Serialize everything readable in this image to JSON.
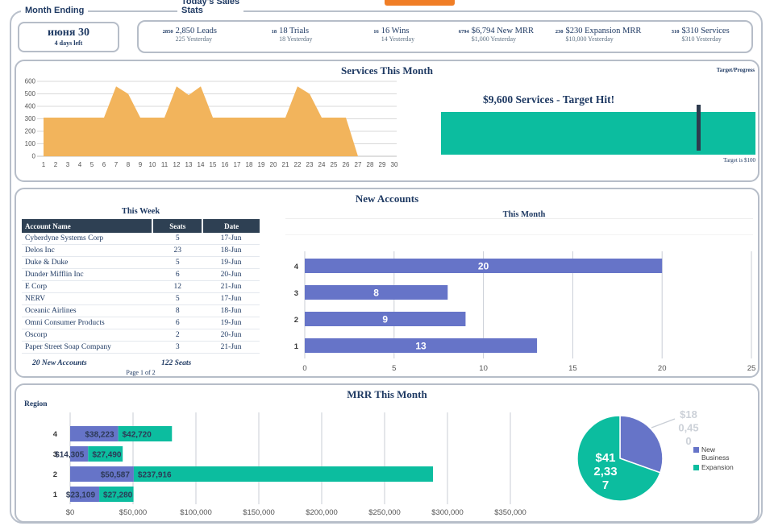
{
  "header": {
    "month_ending_label": "Month Ending",
    "date_value": "июня 30",
    "days_left": "4 days left",
    "stats_label_line1": "Today's Sales",
    "stats_label_line2": "Stats",
    "kpis": [
      {
        "num": "2850",
        "label": "2,850 Leads",
        "sub": "225 Yesterday"
      },
      {
        "num": "18",
        "label": "18 Trials",
        "sub": "18 Yesterday"
      },
      {
        "num": "16",
        "label": "16 Wins",
        "sub": "14 Yesterday"
      },
      {
        "num": "6794",
        "label": "$6,794 New MRR",
        "sub": "$1,000 Yesterday"
      },
      {
        "num": "230",
        "label": "$230 Expansion MRR",
        "sub": "$10,000 Yesterday"
      },
      {
        "num": "310",
        "label": "$310 Services",
        "sub": "$310 Yesterday"
      }
    ]
  },
  "services": {
    "title": "Services This Month",
    "target_progress_label": "Target/Progress",
    "target_text": "$9,600 Services - Target Hit!",
    "target_footnote": "Target is $100",
    "bar_color": "#0cbd9f",
    "marker_color": "#2e3b4e"
  },
  "new_accounts": {
    "title": "New Accounts",
    "week_label": "This Week",
    "month_label": "This Month",
    "table": {
      "columns": [
        "Account Name",
        "Seats",
        "Date"
      ],
      "rows": [
        [
          "Cyberdyne Systems Corp",
          "5",
          "17-Jun"
        ],
        [
          "Delos Inc",
          "23",
          "18-Jun"
        ],
        [
          "Duke & Duke",
          "5",
          "19-Jun"
        ],
        [
          "Dunder Mifflin Inc",
          "6",
          "20-Jun"
        ],
        [
          "E Corp",
          "12",
          "21-Jun"
        ],
        [
          "NERV",
          "5",
          "17-Jun"
        ],
        [
          "Oceanic Airlines",
          "8",
          "18-Jun"
        ],
        [
          "Omni Consumer Products",
          "6",
          "19-Jun"
        ],
        [
          "Oscorp",
          "2",
          "20-Jun"
        ],
        [
          "Paper Street Soap Company",
          "3",
          "21-Jun"
        ]
      ],
      "total_accounts": "20 New Accounts",
      "total_seats": "122 Seats",
      "page": "Page 1 of 2"
    }
  },
  "mrr": {
    "title": "MRR This Month",
    "region_label": "Region",
    "legend": [
      {
        "label": "New Business",
        "color": "#6674c8"
      },
      {
        "label": "Expansion",
        "color": "#0cbd9f"
      }
    ]
  },
  "colors": {
    "navy_text": "#1f3a63",
    "purple": "#6674c8",
    "teal": "#0cbd9f",
    "area_orange": "#f2b45c",
    "table_header": "#2e4053",
    "accent_orange": "#f07e26"
  },
  "chart_data": [
    {
      "id": "services_daily",
      "type": "area",
      "title": "Services This Month",
      "x_range": [
        1,
        30
      ],
      "values": [
        310,
        310,
        310,
        310,
        310,
        310,
        560,
        500,
        310,
        310,
        310,
        560,
        490,
        560,
        310,
        310,
        310,
        310,
        310,
        310,
        310,
        560,
        500,
        310,
        310,
        310,
        0,
        0,
        0,
        0
      ],
      "ylim": [
        0,
        600
      ],
      "ytick_step": 100,
      "color": "#f2b45c",
      "grid": "horizontal"
    },
    {
      "id": "new_accounts_by_region",
      "type": "bar",
      "orientation": "horizontal",
      "title": "This Month",
      "categories": [
        "4",
        "3",
        "2",
        "1"
      ],
      "values": [
        20,
        8,
        9,
        13
      ],
      "xlim": [
        0,
        25
      ],
      "xticks": [
        0,
        5,
        10,
        15,
        20,
        25
      ],
      "bar_color": "#6674c8",
      "grid": "vertical"
    },
    {
      "id": "mrr_by_region",
      "type": "bar",
      "stacked": true,
      "orientation": "horizontal",
      "title": "MRR This Month",
      "ylabel": "Region",
      "categories": [
        "4",
        "3",
        "2",
        "1"
      ],
      "series": [
        {
          "name": "New Business",
          "color": "#6674c8",
          "values": [
            38223,
            14305,
            50587,
            23109
          ],
          "labels": [
            "$38,223",
            "$14,305",
            "$50,587",
            "$23,109"
          ]
        },
        {
          "name": "Expansion",
          "color": "#0cbd9f",
          "values": [
            42720,
            27490,
            237916,
            27280
          ],
          "labels": [
            "$42,720",
            "$27,490",
            "$237,916",
            "$27,280"
          ]
        }
      ],
      "xtick_values": [
        0,
        50000,
        100000,
        150000,
        200000,
        250000,
        300000,
        350000
      ],
      "xtick_labels": [
        "$0",
        "$50,000",
        "$100,000",
        "$150,000",
        "$200,000",
        "$250,000",
        "$300,000",
        "$350,000"
      ],
      "grid": "vertical"
    },
    {
      "id": "mrr_split",
      "type": "pie",
      "slices": [
        {
          "name": "New Business",
          "value": 180450,
          "label": "$180,450",
          "label_lines": [
            "$18",
            "0,45",
            "0"
          ],
          "color": "#6674c8",
          "label_style": "outside-gray"
        },
        {
          "name": "Expansion",
          "value": 412337,
          "label": "$412,337",
          "label_lines": [
            "$41",
            "2,33",
            "7"
          ],
          "color": "#0cbd9f",
          "label_style": "inside-white"
        }
      ],
      "legend_position": "right"
    }
  ]
}
